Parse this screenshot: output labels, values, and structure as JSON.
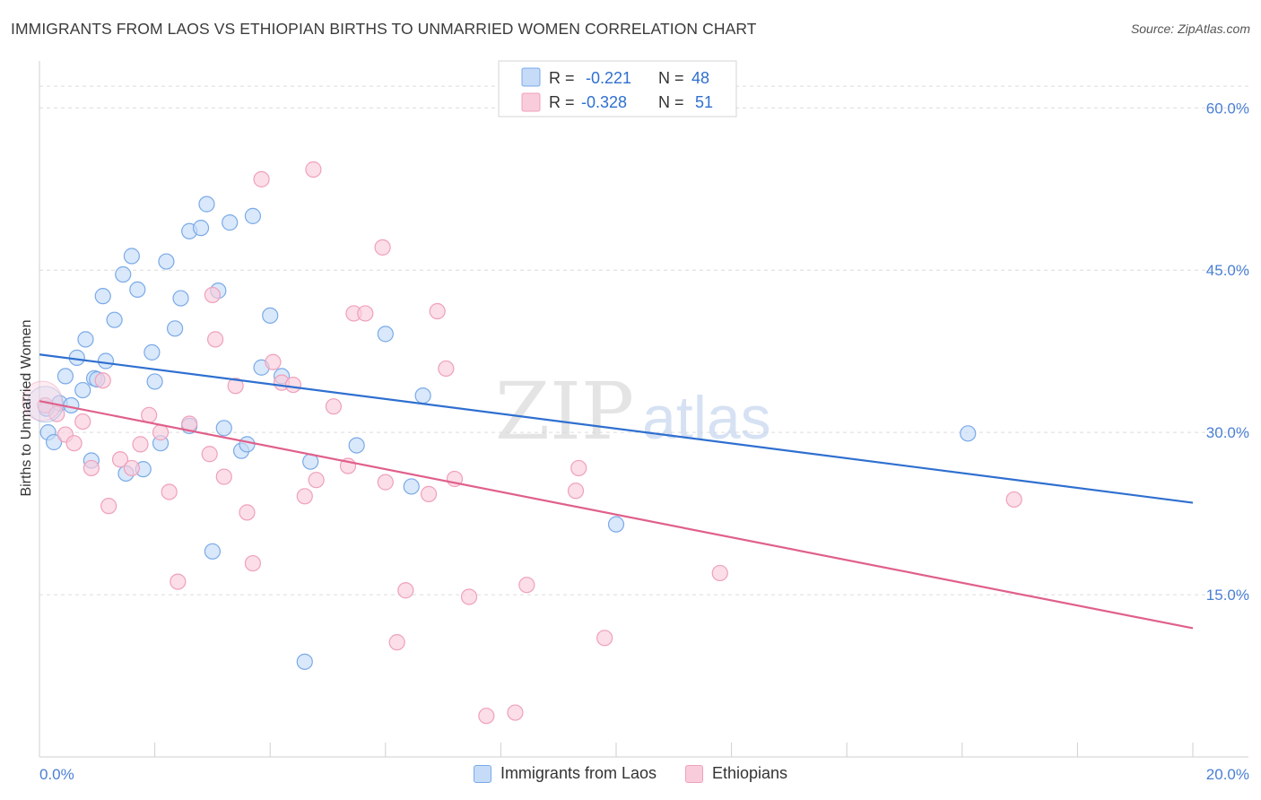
{
  "header": {
    "title": "IMMIGRANTS FROM LAOS VS ETHIOPIAN BIRTHS TO UNMARRIED WOMEN CORRELATION CHART",
    "source": "Source: ZipAtlas.com"
  },
  "watermark": {
    "zip": "ZIP",
    "atlas": "atlas"
  },
  "legend": {
    "rows": [
      {
        "r_label": "R =",
        "r_value": "-0.221",
        "n_label": "N =",
        "n_value": "48"
      },
      {
        "r_label": "R =",
        "r_value": "-0.328",
        "n_label": "N =",
        "n_value": "51"
      }
    ]
  },
  "chart_data": {
    "type": "scatter",
    "title": "IMMIGRANTS FROM LAOS VS ETHIOPIAN BIRTHS TO UNMARRIED WOMEN CORRELATION CHART",
    "xlabel": "",
    "ylabel": "Births to Unmarried Women",
    "xlim": [
      0,
      20
    ],
    "ylim": [
      0,
      64
    ],
    "x_tick_labels": [
      "0.0%",
      "20.0%"
    ],
    "y_ticks": [
      15,
      30,
      45,
      60
    ],
    "y_tick_labels": [
      "15.0%",
      "30.0%",
      "45.0%",
      "60.0%"
    ],
    "grid": true,
    "series": [
      {
        "name": "Immigrants from Laos",
        "color": "#7aaae8",
        "fill": "#c5dbf7",
        "line_color": "#2f6fd0",
        "trend": {
          "x": [
            0,
            20
          ],
          "y": [
            37.2,
            23.5
          ]
        },
        "points": [
          [
            0.12,
            32.2
          ],
          [
            0.15,
            30.0
          ],
          [
            0.25,
            29.1
          ],
          [
            0.35,
            32.7
          ],
          [
            0.45,
            35.2
          ],
          [
            0.55,
            32.5
          ],
          [
            0.65,
            36.9
          ],
          [
            0.8,
            38.6
          ],
          [
            0.9,
            27.4
          ],
          [
            0.95,
            35.0
          ],
          [
            0.75,
            33.9
          ],
          [
            1.0,
            34.9
          ],
          [
            1.1,
            42.6
          ],
          [
            1.15,
            36.6
          ],
          [
            1.45,
            44.6
          ],
          [
            1.5,
            26.2
          ],
          [
            1.6,
            46.3
          ],
          [
            1.7,
            43.2
          ],
          [
            1.8,
            26.6
          ],
          [
            1.95,
            37.4
          ],
          [
            2.0,
            34.7
          ],
          [
            2.1,
            29.0
          ],
          [
            2.2,
            45.8
          ],
          [
            2.35,
            39.6
          ],
          [
            2.45,
            42.4
          ],
          [
            2.6,
            48.6
          ],
          [
            2.6,
            30.6
          ],
          [
            2.8,
            48.9
          ],
          [
            2.9,
            51.1
          ],
          [
            3.0,
            19.0
          ],
          [
            3.1,
            43.1
          ],
          [
            3.2,
            30.4
          ],
          [
            3.3,
            49.4
          ],
          [
            3.5,
            28.3
          ],
          [
            3.6,
            28.9
          ],
          [
            3.7,
            50.0
          ],
          [
            3.85,
            36.0
          ],
          [
            4.0,
            40.8
          ],
          [
            4.2,
            35.2
          ],
          [
            4.6,
            8.8
          ],
          [
            4.7,
            27.3
          ],
          [
            5.5,
            28.8
          ],
          [
            6.0,
            39.1
          ],
          [
            6.45,
            25.0
          ],
          [
            6.65,
            33.4
          ],
          [
            10.0,
            21.5
          ],
          [
            16.1,
            29.9
          ],
          [
            1.3,
            40.4
          ]
        ]
      },
      {
        "name": "Ethiopians",
        "color": "#f0a0ba",
        "fill": "#f9ccdb",
        "line_color": "#e0608a",
        "trend": {
          "x": [
            0,
            20
          ],
          "y": [
            32.9,
            11.9
          ]
        },
        "points": [
          [
            0.1,
            32.5
          ],
          [
            0.3,
            31.7
          ],
          [
            0.45,
            29.8
          ],
          [
            0.6,
            29.0
          ],
          [
            0.75,
            31.0
          ],
          [
            0.9,
            26.7
          ],
          [
            1.1,
            34.8
          ],
          [
            1.2,
            23.2
          ],
          [
            1.4,
            27.5
          ],
          [
            1.6,
            26.7
          ],
          [
            1.75,
            28.9
          ],
          [
            1.9,
            31.6
          ],
          [
            2.1,
            30.0
          ],
          [
            2.25,
            24.5
          ],
          [
            2.4,
            16.2
          ],
          [
            2.6,
            30.8
          ],
          [
            2.95,
            28.0
          ],
          [
            3.0,
            42.7
          ],
          [
            3.05,
            38.6
          ],
          [
            3.2,
            25.9
          ],
          [
            3.4,
            34.3
          ],
          [
            3.6,
            22.6
          ],
          [
            3.7,
            17.9
          ],
          [
            3.85,
            53.4
          ],
          [
            4.05,
            36.5
          ],
          [
            4.2,
            34.6
          ],
          [
            4.4,
            34.4
          ],
          [
            4.6,
            24.1
          ],
          [
            4.75,
            54.3
          ],
          [
            4.8,
            25.6
          ],
          [
            5.1,
            32.4
          ],
          [
            5.35,
            26.9
          ],
          [
            5.45,
            41.0
          ],
          [
            5.65,
            41.0
          ],
          [
            5.95,
            47.1
          ],
          [
            6.0,
            25.4
          ],
          [
            6.2,
            10.6
          ],
          [
            6.35,
            15.4
          ],
          [
            6.75,
            24.3
          ],
          [
            6.9,
            41.2
          ],
          [
            7.05,
            35.9
          ],
          [
            7.2,
            25.7
          ],
          [
            7.45,
            14.8
          ],
          [
            7.75,
            3.8
          ],
          [
            8.25,
            4.1
          ],
          [
            8.45,
            15.9
          ],
          [
            9.3,
            24.6
          ],
          [
            9.35,
            26.7
          ],
          [
            9.8,
            11.0
          ],
          [
            11.8,
            17.0
          ],
          [
            16.9,
            23.8
          ]
        ]
      }
    ]
  }
}
